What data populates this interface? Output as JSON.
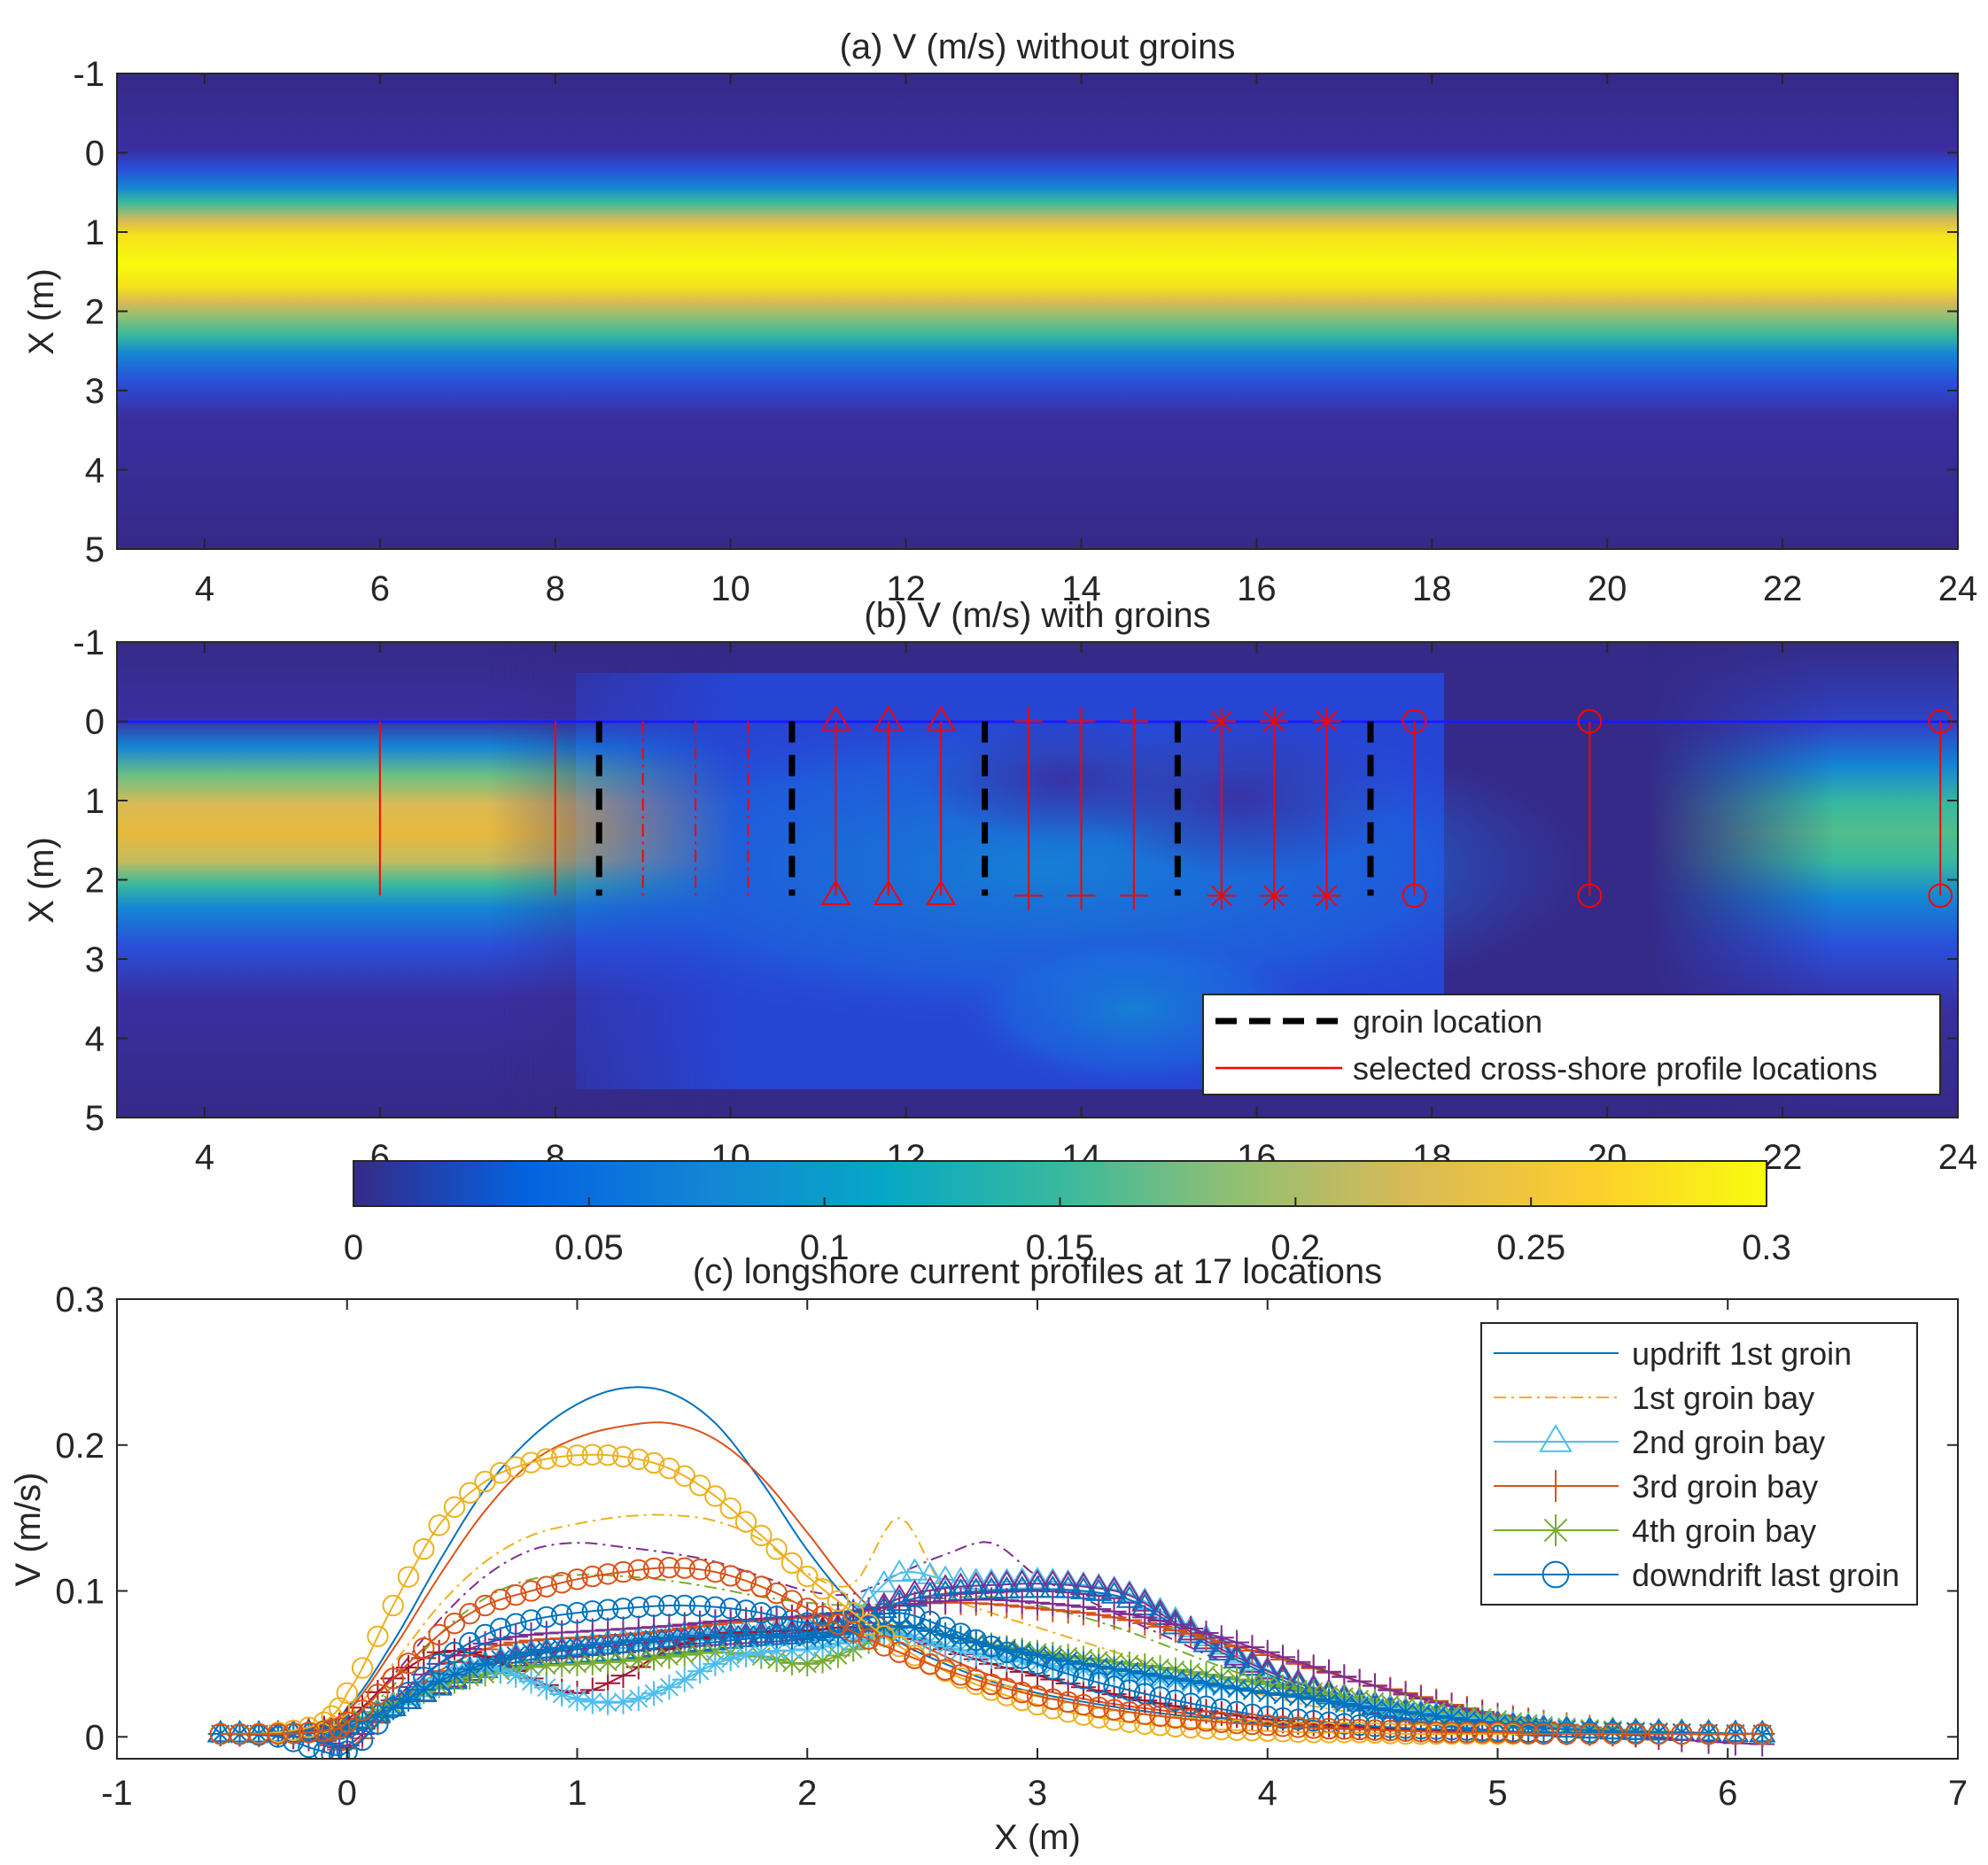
{
  "chart_data": [
    {
      "id": "a",
      "type": "heatmap",
      "title": "(a) V (m/s) without groins",
      "xlabel": "",
      "ylabel": "X (m)",
      "xlim": [
        3,
        24
      ],
      "ylim": [
        -1,
        5
      ],
      "y_reversed": true,
      "xticks": [
        4,
        6,
        8,
        10,
        12,
        14,
        16,
        18,
        20,
        22,
        24
      ],
      "yticks": [
        -1,
        0,
        1,
        2,
        3,
        4,
        5
      ],
      "field_description": "uniform alongshore jet peaking near X = 1.3 m",
      "jet_center_x": 1.3,
      "jet_peak_v": 0.3
    },
    {
      "id": "b",
      "type": "heatmap",
      "title": "(b) V (m/s) with groins",
      "xlabel": "",
      "ylabel": "X (m)",
      "xlim": [
        3,
        24
      ],
      "ylim": [
        -1,
        5
      ],
      "y_reversed": true,
      "xticks": [
        4,
        6,
        8,
        10,
        12,
        14,
        16,
        18,
        20,
        22,
        24
      ],
      "yticks": [
        -1,
        0,
        1,
        2,
        3,
        4,
        5
      ],
      "shoreline_x": 0,
      "groin_extent": [
        0,
        2.2
      ],
      "groin_locations": [
        8.5,
        10.7,
        12.9,
        15.1,
        17.3
      ],
      "profile_extent": [
        0,
        2.2
      ],
      "profile_groups": [
        {
          "group": "updrift 1st groin",
          "marker": "none",
          "line": "solid",
          "y": [
            6.0,
            8.0
          ]
        },
        {
          "group": "1st groin bay",
          "marker": "none",
          "line": "dashdot",
          "y": [
            9.0,
            9.6,
            10.2
          ]
        },
        {
          "group": "2nd groin bay",
          "marker": "triangle",
          "line": "solid",
          "y": [
            11.2,
            11.8,
            12.4
          ]
        },
        {
          "group": "3rd groin bay",
          "marker": "plus",
          "line": "solid",
          "y": [
            13.4,
            14.0,
            14.6
          ]
        },
        {
          "group": "4th groin bay",
          "marker": "star",
          "line": "solid",
          "y": [
            15.6,
            16.2,
            16.8
          ]
        },
        {
          "group": "downdrift last groin",
          "marker": "circle",
          "line": "solid",
          "y": [
            17.8,
            19.8,
            23.8
          ]
        }
      ],
      "legend": [
        {
          "label": "groin location",
          "color": "#000000",
          "style": "dashed"
        },
        {
          "label": "selected cross-shore profile locations",
          "color": "#ff0000",
          "style": "solid"
        }
      ],
      "legend_position": "bottom-right"
    },
    {
      "id": "colorbar",
      "type": "colorbar",
      "colormap": "parula",
      "range": [
        0,
        0.3
      ],
      "ticks": [
        0,
        0.05,
        0.1,
        0.15,
        0.2,
        0.25,
        0.3
      ],
      "tick_labels": [
        "0",
        "0.05",
        "0.1",
        "0.15",
        "0.2",
        "0.25",
        "0.3"
      ]
    },
    {
      "id": "c",
      "type": "line",
      "title": "(c) longshore current profiles at 17 locations",
      "xlabel": "X (m)",
      "ylabel": "V (m/s)",
      "xlim": [
        -1,
        7
      ],
      "ylim": [
        -0.015,
        0.3
      ],
      "xticks": [
        -1,
        0,
        1,
        2,
        3,
        4,
        5,
        6,
        7
      ],
      "yticks": [
        0,
        0.1,
        0.2,
        0.3
      ],
      "ytick_labels": [
        "0",
        "0.1",
        "0.2",
        "0.3"
      ],
      "x": [
        -0.55,
        -0.3,
        -0.1,
        0.0,
        0.2,
        0.4,
        0.6,
        0.8,
        1.0,
        1.2,
        1.4,
        1.6,
        1.8,
        2.0,
        2.2,
        2.4,
        2.6,
        2.8,
        3.0,
        3.2,
        3.4,
        3.6,
        3.8,
        4.0,
        4.2,
        4.4,
        4.6,
        4.8,
        5.0,
        5.2,
        5.5,
        5.8,
        6.15
      ],
      "series": [
        {
          "name": "updrift 1st groin",
          "group": "updrift 1st groin",
          "color": "#0072bd",
          "marker": "none",
          "dash": "",
          "legend": true,
          "values": [
            0.002,
            0.003,
            0.008,
            0.02,
            0.065,
            0.12,
            0.17,
            0.205,
            0.228,
            0.239,
            0.236,
            0.215,
            0.175,
            0.128,
            0.09,
            0.065,
            0.05,
            0.038,
            0.03,
            0.024,
            0.019,
            0.015,
            0.012,
            0.009,
            0.007,
            0.006,
            0.005,
            0.004,
            0.003,
            0.003,
            0.002,
            0.002,
            0.002
          ]
        },
        {
          "name": "updrift 1st groin 2",
          "group": "updrift 1st groin",
          "color": "#d95319",
          "marker": "none",
          "dash": "",
          "legend": false,
          "values": [
            0.002,
            0.003,
            0.007,
            0.018,
            0.06,
            0.11,
            0.155,
            0.188,
            0.205,
            0.213,
            0.215,
            0.204,
            0.178,
            0.14,
            0.1,
            0.072,
            0.055,
            0.042,
            0.033,
            0.026,
            0.021,
            0.017,
            0.013,
            0.01,
            0.008,
            0.006,
            0.005,
            0.004,
            0.003,
            0.003,
            0.002,
            0.002,
            0.002
          ]
        },
        {
          "name": "1st groin bay",
          "group": "1st groin bay",
          "color": "#edb120",
          "marker": "none",
          "dash": "14 6 3 6",
          "legend": true,
          "values": [
            0.002,
            0.003,
            0.006,
            0.015,
            0.05,
            0.09,
            0.12,
            0.138,
            0.146,
            0.151,
            0.152,
            0.148,
            0.135,
            0.112,
            0.105,
            0.15,
            0.1,
            0.085,
            0.075,
            0.065,
            0.055,
            0.045,
            0.036,
            0.028,
            0.021,
            0.016,
            0.012,
            0.009,
            0.007,
            0.005,
            0.004,
            0.003,
            0.002
          ]
        },
        {
          "name": "1st groin bay 2",
          "group": "1st groin bay",
          "color": "#7e2f8e",
          "marker": "none",
          "dash": "14 6 3 6",
          "legend": false,
          "values": [
            0.002,
            0.003,
            0.005,
            0.012,
            0.042,
            0.08,
            0.11,
            0.128,
            0.133,
            0.13,
            0.126,
            0.12,
            0.11,
            0.1,
            0.098,
            0.112,
            0.125,
            0.133,
            0.11,
            0.095,
            0.08,
            0.066,
            0.052,
            0.04,
            0.03,
            0.022,
            0.016,
            0.012,
            0.009,
            0.006,
            0.004,
            0.003,
            0.002
          ]
        },
        {
          "name": "1st groin bay 3",
          "group": "1st groin bay",
          "color": "#77ac30",
          "marker": "none",
          "dash": "14 6 3 6",
          "legend": false,
          "values": [
            0.002,
            0.003,
            0.004,
            0.01,
            0.035,
            0.07,
            0.095,
            0.108,
            0.111,
            0.11,
            0.107,
            0.102,
            0.096,
            0.092,
            0.09,
            0.092,
            0.095,
            0.096,
            0.09,
            0.082,
            0.072,
            0.06,
            0.048,
            0.037,
            0.028,
            0.021,
            0.015,
            0.011,
            0.008,
            0.006,
            0.004,
            0.003,
            0.002
          ]
        },
        {
          "name": "2nd groin bay",
          "group": "2nd groin bay",
          "color": "#4dbeee",
          "marker": "triangle",
          "dash": "",
          "legend": true,
          "values": [
            0.002,
            0.002,
            0.004,
            0.008,
            0.022,
            0.038,
            0.05,
            0.058,
            0.062,
            0.066,
            0.07,
            0.072,
            0.073,
            0.075,
            0.085,
            0.112,
            0.108,
            0.106,
            0.107,
            0.104,
            0.098,
            0.08,
            0.062,
            0.046,
            0.034,
            0.025,
            0.018,
            0.013,
            0.009,
            0.006,
            0.004,
            0.003,
            0.002
          ]
        },
        {
          "name": "2nd groin bay 2",
          "group": "2nd groin bay",
          "color": "#7e2f8e",
          "marker": "triangle",
          "dash": "",
          "legend": false,
          "values": [
            0.002,
            0.002,
            0.004,
            0.008,
            0.02,
            0.035,
            0.048,
            0.056,
            0.06,
            0.063,
            0.066,
            0.068,
            0.07,
            0.072,
            0.078,
            0.095,
            0.102,
            0.104,
            0.105,
            0.103,
            0.097,
            0.078,
            0.06,
            0.045,
            0.033,
            0.024,
            0.017,
            0.012,
            0.009,
            0.006,
            0.004,
            0.003,
            0.002
          ]
        },
        {
          "name": "2nd groin bay 3",
          "group": "2nd groin bay",
          "color": "#0072bd",
          "marker": "triangle",
          "dash": "",
          "legend": false,
          "values": [
            0.002,
            0.002,
            0.003,
            0.007,
            0.02,
            0.034,
            0.046,
            0.053,
            0.056,
            0.058,
            0.062,
            0.065,
            0.068,
            0.07,
            0.076,
            0.092,
            0.098,
            0.1,
            0.101,
            0.1,
            0.094,
            0.076,
            0.058,
            0.043,
            0.031,
            0.023,
            0.016,
            0.012,
            0.008,
            0.006,
            0.004,
            0.003,
            0.002
          ]
        },
        {
          "name": "3rd groin bay",
          "group": "3rd groin bay",
          "color": "#d95319",
          "marker": "plus",
          "dash": "",
          "legend": true,
          "values": [
            0.002,
            0.001,
            -0.003,
            -0.008,
            0.02,
            0.045,
            0.06,
            0.066,
            0.068,
            0.07,
            0.073,
            0.077,
            0.08,
            0.082,
            0.085,
            0.09,
            0.092,
            0.091,
            0.088,
            0.085,
            0.08,
            0.073,
            0.065,
            0.056,
            0.047,
            0.038,
            0.03,
            0.022,
            0.015,
            0.01,
            0.005,
            0.002,
            0.002
          ]
        },
        {
          "name": "3rd groin bay 2",
          "group": "3rd groin bay",
          "color": "#7e2f8e",
          "marker": "plus",
          "dash": "",
          "legend": false,
          "values": [
            0.002,
            0.001,
            -0.002,
            -0.006,
            0.025,
            0.05,
            0.064,
            0.07,
            0.072,
            0.074,
            0.076,
            0.079,
            0.081,
            0.083,
            0.086,
            0.09,
            0.093,
            0.094,
            0.092,
            0.089,
            0.084,
            0.077,
            0.068,
            0.058,
            0.048,
            0.038,
            0.029,
            0.021,
            0.014,
            0.008,
            0.003,
            -0.002,
            -0.005
          ]
        },
        {
          "name": "3rd groin bay 3",
          "group": "3rd groin bay",
          "color": "#a2142f",
          "marker": "plus",
          "dash": "",
          "legend": false,
          "values": [
            0.002,
            0.002,
            0.006,
            0.012,
            0.04,
            0.058,
            0.055,
            0.04,
            0.03,
            0.042,
            0.06,
            0.07,
            0.072,
            0.073,
            0.075,
            0.07,
            0.06,
            0.05,
            0.042,
            0.034,
            0.027,
            0.021,
            0.016,
            0.012,
            0.009,
            0.007,
            0.005,
            0.004,
            0.003,
            0.003,
            0.002,
            0.002,
            0.002
          ]
        },
        {
          "name": "4th groin bay",
          "group": "4th groin bay",
          "color": "#77ac30",
          "marker": "star",
          "dash": "",
          "legend": true,
          "values": [
            0.002,
            0.002,
            0.003,
            0.008,
            0.022,
            0.035,
            0.043,
            0.048,
            0.05,
            0.052,
            0.055,
            0.058,
            0.055,
            0.05,
            0.06,
            0.075,
            0.07,
            0.063,
            0.058,
            0.054,
            0.05,
            0.046,
            0.041,
            0.036,
            0.031,
            0.026,
            0.021,
            0.016,
            0.012,
            0.008,
            0.005,
            0.003,
            0.002
          ]
        },
        {
          "name": "4th groin bay 2",
          "group": "4th groin bay",
          "color": "#4dbeee",
          "marker": "star",
          "dash": "",
          "legend": false,
          "values": [
            0.002,
            0.002,
            0.003,
            0.007,
            0.02,
            0.04,
            0.048,
            0.038,
            0.026,
            0.024,
            0.034,
            0.05,
            0.058,
            0.06,
            0.066,
            0.07,
            0.062,
            0.055,
            0.05,
            0.046,
            0.042,
            0.038,
            0.034,
            0.03,
            0.026,
            0.022,
            0.018,
            0.014,
            0.01,
            0.007,
            0.004,
            0.003,
            0.002
          ]
        },
        {
          "name": "4th groin bay 3",
          "group": "4th groin bay",
          "color": "#0072bd",
          "marker": "star",
          "dash": "",
          "legend": false,
          "values": [
            0.002,
            0.002,
            0.003,
            0.007,
            0.02,
            0.038,
            0.05,
            0.058,
            0.062,
            0.065,
            0.068,
            0.07,
            0.07,
            0.068,
            0.072,
            0.076,
            0.07,
            0.062,
            0.056,
            0.05,
            0.045,
            0.04,
            0.035,
            0.03,
            0.026,
            0.021,
            0.017,
            0.013,
            0.009,
            0.006,
            0.004,
            0.003,
            0.002
          ]
        },
        {
          "name": "downdrift last groin",
          "group": "downdrift last groin",
          "color": "#0072bd",
          "marker": "circle",
          "dash": "",
          "legend": true,
          "values": [
            0.002,
            0.0,
            -0.01,
            -0.01,
            0.02,
            0.05,
            0.07,
            0.08,
            0.085,
            0.088,
            0.09,
            0.089,
            0.085,
            0.078,
            0.08,
            0.085,
            0.075,
            0.062,
            0.05,
            0.04,
            0.032,
            0.025,
            0.019,
            0.014,
            0.011,
            0.008,
            0.006,
            0.005,
            0.004,
            0.003,
            0.003,
            0.002,
            0.002
          ]
        },
        {
          "name": "downdrift last groin 2",
          "group": "downdrift last groin",
          "color": "#edb120",
          "marker": "circle",
          "dash": "",
          "legend": false,
          "values": [
            0.002,
            0.003,
            0.01,
            0.03,
            0.09,
            0.145,
            0.175,
            0.188,
            0.193,
            0.192,
            0.184,
            0.165,
            0.138,
            0.11,
            0.085,
            0.062,
            0.045,
            0.032,
            0.022,
            0.015,
            0.01,
            0.007,
            0.005,
            0.004,
            0.003,
            0.003,
            0.002,
            0.002,
            0.002,
            0.002,
            0.002,
            0.002,
            0.002
          ]
        },
        {
          "name": "downdrift last groin 3",
          "group": "downdrift last groin",
          "color": "#d95319",
          "marker": "circle",
          "dash": "",
          "legend": false,
          "values": [
            0.002,
            0.002,
            0.004,
            0.01,
            0.04,
            0.07,
            0.09,
            0.1,
            0.108,
            0.113,
            0.116,
            0.113,
            0.103,
            0.088,
            0.072,
            0.058,
            0.046,
            0.036,
            0.028,
            0.022,
            0.017,
            0.013,
            0.01,
            0.008,
            0.006,
            0.005,
            0.004,
            0.003,
            0.003,
            0.002,
            0.002,
            0.002,
            0.002
          ]
        }
      ],
      "legend_position": "top-right"
    }
  ]
}
